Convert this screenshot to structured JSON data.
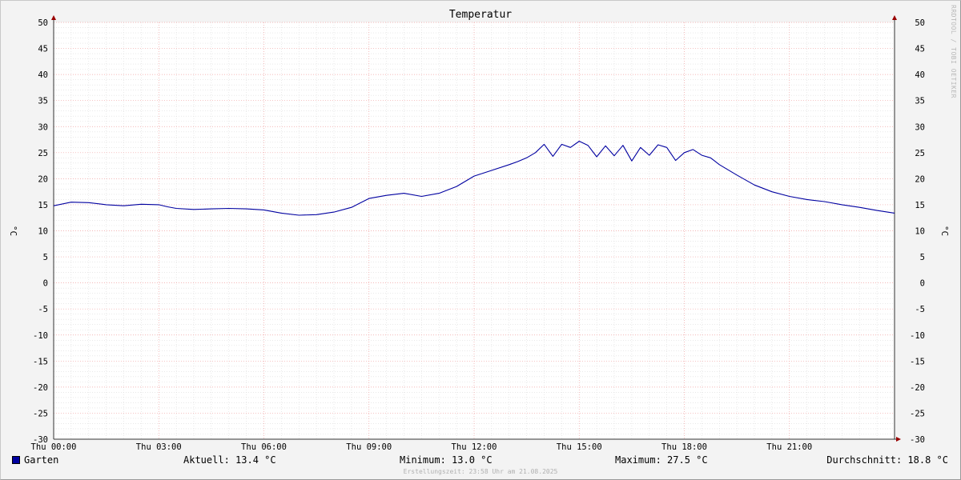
{
  "chart_data": {
    "type": "line",
    "title": "Temperatur",
    "ylabel": "°C",
    "ylabel_right": "°C",
    "ylim": [
      -30,
      50
    ],
    "ytick_step": 5,
    "xlim_hours": [
      0,
      24
    ],
    "x_ticks": [
      {
        "hour": 0,
        "label": "Thu 00:00"
      },
      {
        "hour": 3,
        "label": "Thu 03:00"
      },
      {
        "hour": 6,
        "label": "Thu 06:00"
      },
      {
        "hour": 9,
        "label": "Thu 09:00"
      },
      {
        "hour": 12,
        "label": "Thu 12:00"
      },
      {
        "hour": 15,
        "label": "Thu 15:00"
      },
      {
        "hour": 18,
        "label": "Thu 18:00"
      },
      {
        "hour": 21,
        "label": "Thu 21:00"
      }
    ],
    "grid": true,
    "series": [
      {
        "name": "Garten",
        "color": "#0000a0",
        "x": [
          0,
          0.5,
          1,
          1.5,
          2,
          2.5,
          3,
          3.25,
          3.5,
          4,
          4.5,
          5,
          5.5,
          6,
          6.5,
          7,
          7.5,
          8,
          8.5,
          9,
          9.5,
          10,
          10.5,
          11,
          11.5,
          12,
          12.5,
          13,
          13.25,
          13.5,
          13.75,
          14,
          14.25,
          14.5,
          14.75,
          15,
          15.25,
          15.5,
          15.75,
          16,
          16.25,
          16.5,
          16.75,
          17,
          17.25,
          17.5,
          17.75,
          18,
          18.25,
          18.5,
          18.75,
          19,
          19.5,
          20,
          20.5,
          21,
          21.5,
          22,
          22.5,
          23,
          23.5,
          24
        ],
        "y": [
          14.8,
          15.5,
          15.4,
          15.0,
          14.8,
          15.1,
          15.0,
          14.6,
          14.3,
          14.1,
          14.2,
          14.3,
          14.2,
          14.0,
          13.4,
          13.0,
          13.1,
          13.6,
          14.5,
          16.2,
          16.8,
          17.2,
          16.6,
          17.2,
          18.5,
          20.5,
          21.6,
          22.7,
          23.3,
          24.0,
          25.0,
          26.6,
          24.3,
          26.6,
          26.0,
          27.2,
          26.4,
          24.2,
          26.3,
          24.4,
          26.4,
          23.4,
          26.0,
          24.5,
          26.5,
          26.0,
          23.5,
          25.0,
          25.6,
          24.5,
          24.0,
          22.7,
          20.7,
          18.8,
          17.5,
          16.6,
          16.0,
          15.6,
          15.0,
          14.5,
          13.9,
          13.4
        ]
      }
    ]
  },
  "legend": {
    "series_name": "Garten",
    "aktuell": "Aktuell: 13.4 °C",
    "minimum": "Minimum: 13.0 °C",
    "maximum": "Maximum: 27.5 °C",
    "durchschnitt": "Durchschnitt: 18.8 °C"
  },
  "footer": "Erstellungszeit: 23:58 Uhr am 21.08.2025",
  "watermark": "RRDTOOL / TOBI OETIKER"
}
